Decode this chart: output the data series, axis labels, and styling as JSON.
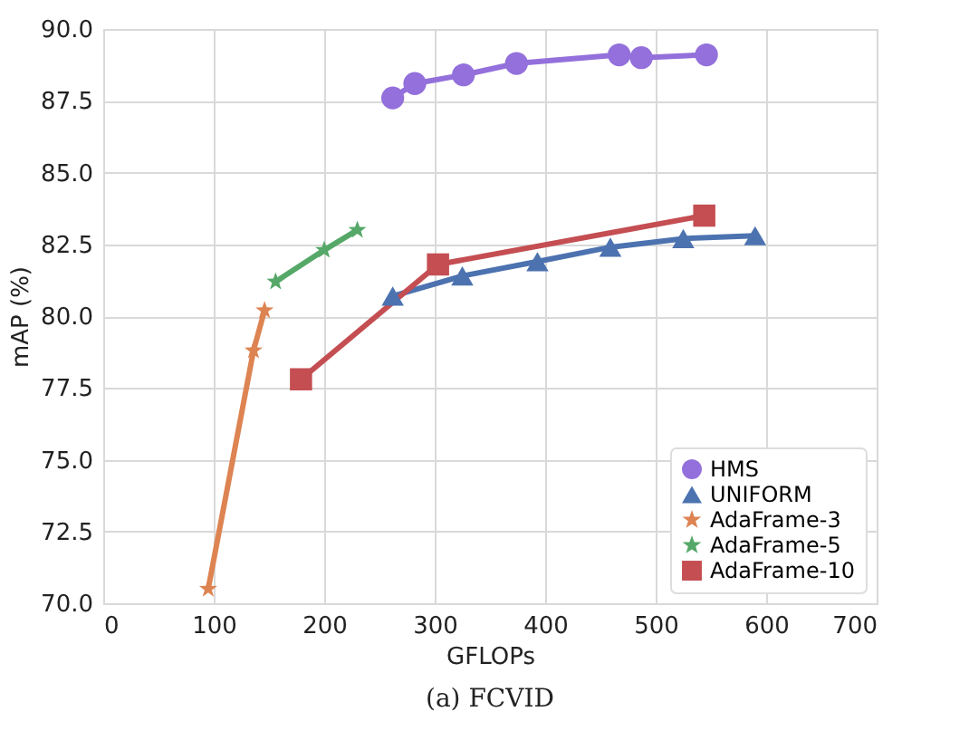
{
  "chart_data": {
    "type": "line",
    "xlabel": "GFLOPs",
    "ylabel": "mAP (%)",
    "xlim": [
      0,
      700
    ],
    "xticks": [
      0,
      100,
      200,
      300,
      400,
      500,
      600,
      700
    ],
    "ylim": [
      70,
      90
    ],
    "yticks": [
      {
        "value": 70,
        "label": "70.0"
      },
      72.5,
      {
        "value": 75,
        "label": "75.0"
      },
      77.5,
      {
        "value": 80,
        "label": "80.0"
      },
      82.5,
      {
        "value": 85,
        "label": "85.0"
      },
      87.5,
      {
        "value": 90,
        "label": "90.0"
      }
    ],
    "grid": true,
    "legend": "bottom right",
    "annotations": [
      "(a) FCVID"
    ],
    "series": [
      {
        "name": "HMS",
        "color": "#9370db",
        "marker": "circle",
        "x": [
          262,
          282,
          326,
          374,
          467,
          487,
          546
        ],
        "values": [
          87.6,
          88.1,
          88.4,
          88.8,
          89.1,
          89.0,
          89.1
        ]
      },
      {
        "name": "UNIFORM",
        "color": "#4c72b0",
        "marker": "triangle",
        "x": [
          262,
          325,
          393,
          459,
          525,
          590
        ],
        "values": [
          80.7,
          81.4,
          81.9,
          82.4,
          82.7,
          82.8
        ]
      },
      {
        "name": "AdaFrame-3",
        "color": "#dd8452",
        "marker": "star",
        "x": [
          95,
          136,
          146
        ],
        "values": [
          70.5,
          78.8,
          80.2
        ]
      },
      {
        "name": "AdaFrame-5",
        "color": "#55a868",
        "marker": "star",
        "x": [
          156,
          200,
          230
        ],
        "values": [
          81.2,
          82.3,
          83.0
        ]
      },
      {
        "name": "AdaFrame-10",
        "color": "#c44e52",
        "marker": "square",
        "x": [
          179,
          303,
          544
        ],
        "values": [
          77.8,
          81.8,
          83.5
        ]
      }
    ]
  }
}
